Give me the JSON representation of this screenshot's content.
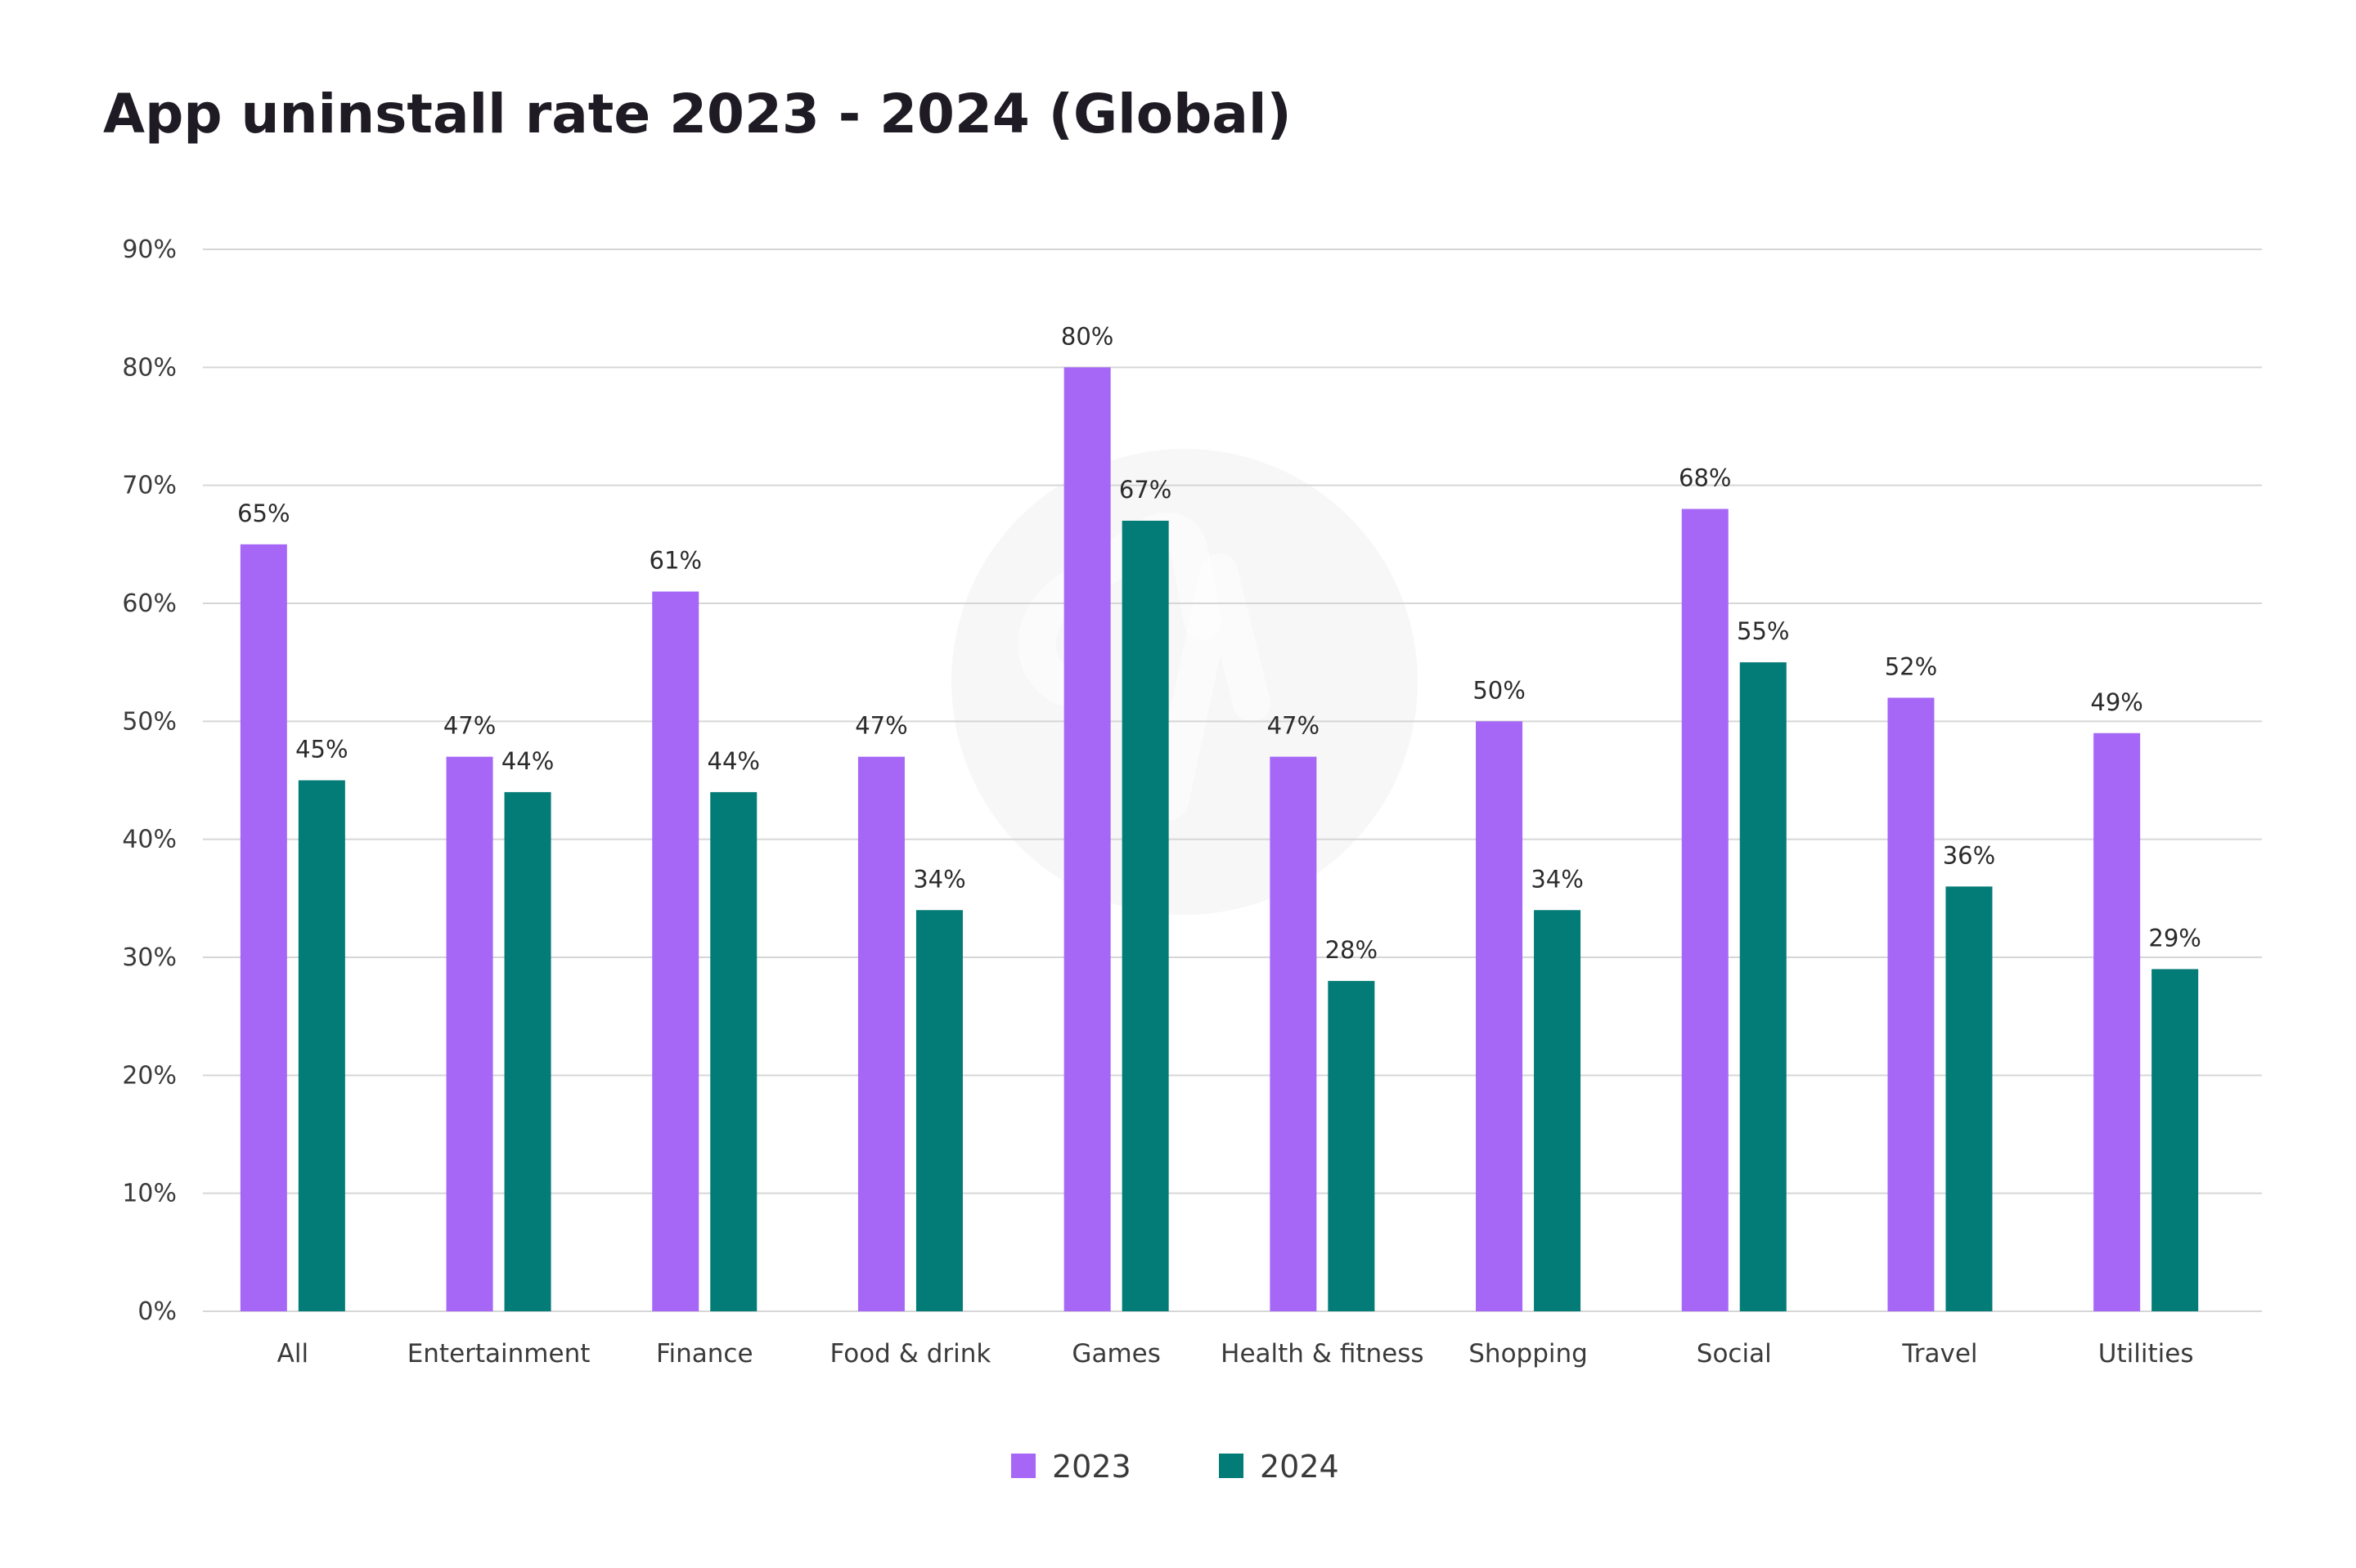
{
  "chart_data": {
    "type": "bar",
    "title": "App uninstall rate 2023 - 2024 (Global)",
    "xlabel": "",
    "ylabel": "",
    "ylim": [
      0,
      90
    ],
    "y_ticks": [
      0,
      10,
      20,
      30,
      40,
      50,
      60,
      70,
      80,
      90
    ],
    "y_tick_labels": [
      "0%",
      "10%",
      "20%",
      "30%",
      "40%",
      "50%",
      "60%",
      "70%",
      "80%",
      "90%"
    ],
    "grid": true,
    "legend_position": "bottom-center",
    "categories": [
      "All",
      "Entertainment",
      "Finance",
      "Food & drink",
      "Games",
      "Health & fitness",
      "Shopping",
      "Social",
      "Travel",
      "Utilities"
    ],
    "series": [
      {
        "name": "2023",
        "color": "#a667f7",
        "values": [
          65,
          47,
          61,
          47,
          80,
          47,
          50,
          68,
          52,
          49
        ],
        "labels": [
          "65%",
          "47%",
          "61%",
          "47%",
          "80%",
          "47%",
          "50%",
          "68%",
          "52%",
          "49%"
        ]
      },
      {
        "name": "2024",
        "color": "#037b76",
        "values": [
          45,
          44,
          44,
          34,
          67,
          28,
          34,
          55,
          36,
          29
        ],
        "labels": [
          "45%",
          "44%",
          "44%",
          "34%",
          "67%",
          "28%",
          "34%",
          "55%",
          "36%",
          "29%"
        ]
      }
    ],
    "watermark_icon": "brand-logo-watermark-icon"
  }
}
